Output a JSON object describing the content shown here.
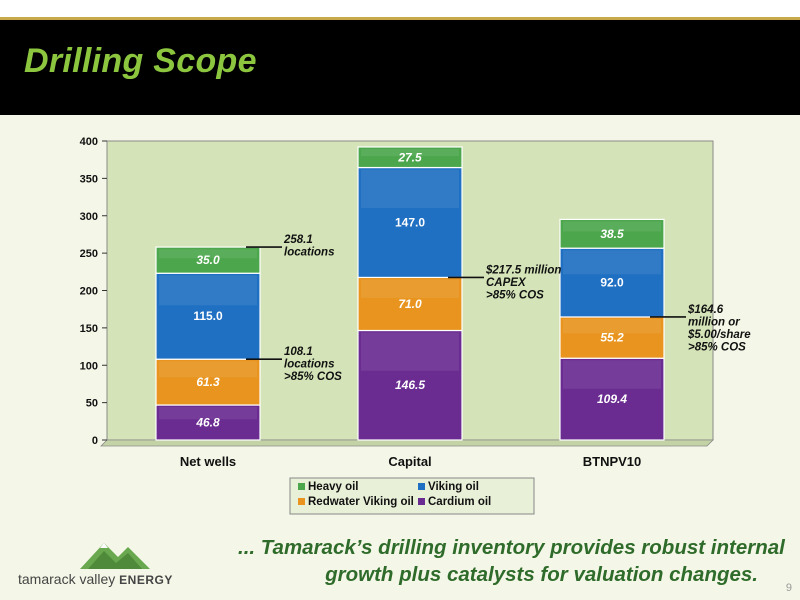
{
  "slide": {
    "title": "Drilling Scope",
    "tagline_line1": "... Tamarack’s drilling inventory provides robust internal",
    "tagline_line2": "growth plus catalysts for valuation changes.",
    "logo_text_main": "tamarack valley ",
    "logo_text_bold": "ENERGY",
    "page_number": "9"
  },
  "chart_data": {
    "type": "bar",
    "stacked": true,
    "categories": [
      "Net wells",
      "Capital",
      "BTNPV10"
    ],
    "series": [
      {
        "name": "Cardium oil",
        "values": [
          46.8,
          146.5,
          109.4
        ],
        "color": "#6a2c91",
        "label_color": "#ffffff"
      },
      {
        "name": "Redwater Viking oil",
        "values": [
          61.3,
          71.0,
          55.2
        ],
        "color": "#e8941e",
        "label_color": "#ffffff"
      },
      {
        "name": "Viking oil",
        "values": [
          115.0,
          147.0,
          92.0
        ],
        "color": "#1f6fc2",
        "label_color": "#ffffff"
      },
      {
        "name": "Heavy oil",
        "values": [
          35.0,
          27.5,
          38.5
        ],
        "color": "#4ca64c",
        "label_color": "#ffffff"
      }
    ],
    "value_labels": [
      [
        "46.8",
        "146.5",
        "109.4"
      ],
      [
        "61.3",
        "71.0",
        "55.2"
      ],
      [
        "115.0",
        "147.0",
        "92.0"
      ],
      [
        "35.0",
        "27.5",
        "38.5"
      ]
    ],
    "ylim": [
      0,
      400
    ],
    "yticks": [
      "0",
      "50",
      "100",
      "150",
      "200",
      "250",
      "300",
      "350",
      "400"
    ],
    "legend_order": [
      "Heavy oil",
      "Viking oil",
      "Redwater Viking oil",
      "Cardium oil"
    ],
    "legend_position": "bottom",
    "annotations": [
      {
        "category": 0,
        "y": 258.1,
        "lines": [
          "258.1",
          "locations"
        ]
      },
      {
        "category": 0,
        "y": 108.1,
        "lines": [
          "108.1",
          "locations",
          ">85% COS"
        ]
      },
      {
        "category": 1,
        "y": 217.5,
        "lines": [
          "$217.5 million",
          "CAPEX",
          ">85% COS"
        ]
      },
      {
        "category": 2,
        "y": 164.6,
        "lines": [
          "$164.6",
          "million or",
          "$5.00/share",
          ">85% COS"
        ]
      }
    ],
    "plot_background": "#d4e4b8"
  }
}
